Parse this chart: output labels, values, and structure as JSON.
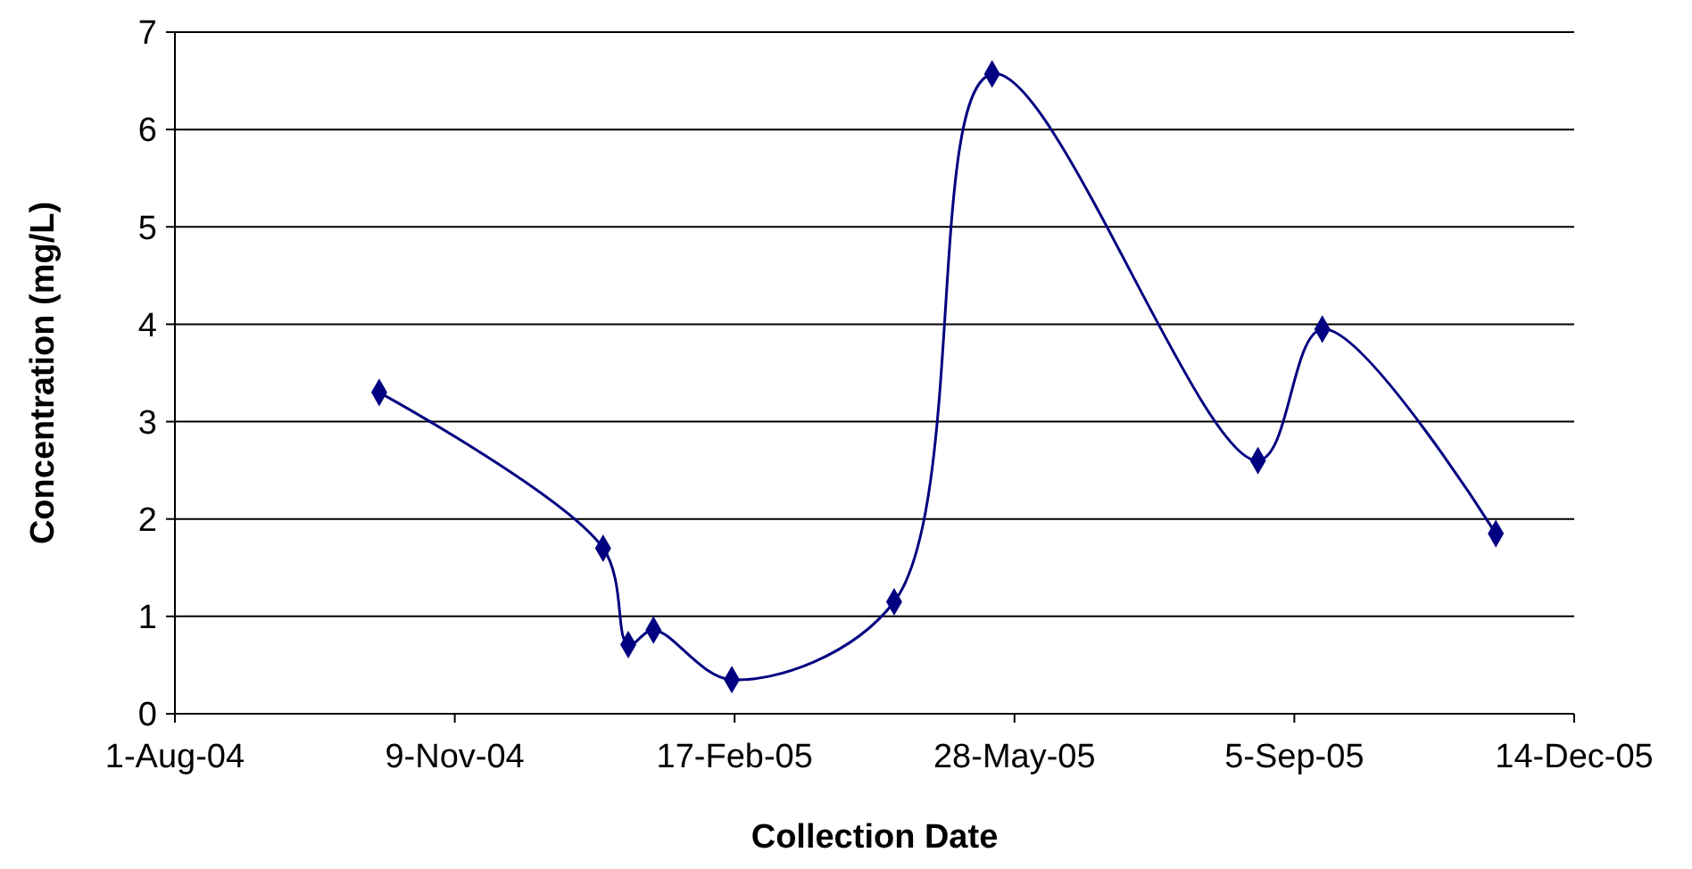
{
  "chart_data": {
    "type": "line",
    "xlabel": "Collection Date",
    "ylabel": "Concentration (mg/L)",
    "x": [
      "2004-10-13",
      "2005-01-01",
      "2005-01-10",
      "2005-01-19",
      "2005-02-16",
      "2005-04-15",
      "2005-05-20",
      "2005-08-23",
      "2005-09-15",
      "2005-11-16"
    ],
    "series": [
      {
        "color": "#000080",
        "values": [
          3.3,
          1.7,
          0.71,
          0.86,
          0.35,
          1.15,
          6.57,
          2.6,
          3.95,
          1.85
        ]
      }
    ],
    "xlim": [
      "2004-08-01",
      "2005-12-14"
    ],
    "xticks": [
      {
        "value": "2004-08-01",
        "label": "1-Aug-04"
      },
      {
        "value": "2004-11-09",
        "label": "9-Nov-04"
      },
      {
        "value": "2005-02-17",
        "label": "17-Feb-05"
      },
      {
        "value": "2005-05-28",
        "label": "28-May-05"
      },
      {
        "value": "2005-09-05",
        "label": "5-Sep-05"
      },
      {
        "value": "2005-12-14",
        "label": "14-Dec-05"
      }
    ],
    "ylim": [
      0,
      7
    ],
    "yticks": [
      0,
      1,
      2,
      3,
      4,
      5,
      6,
      7
    ],
    "grid": "y",
    "marker": "diamond",
    "line_style": "solid"
  }
}
